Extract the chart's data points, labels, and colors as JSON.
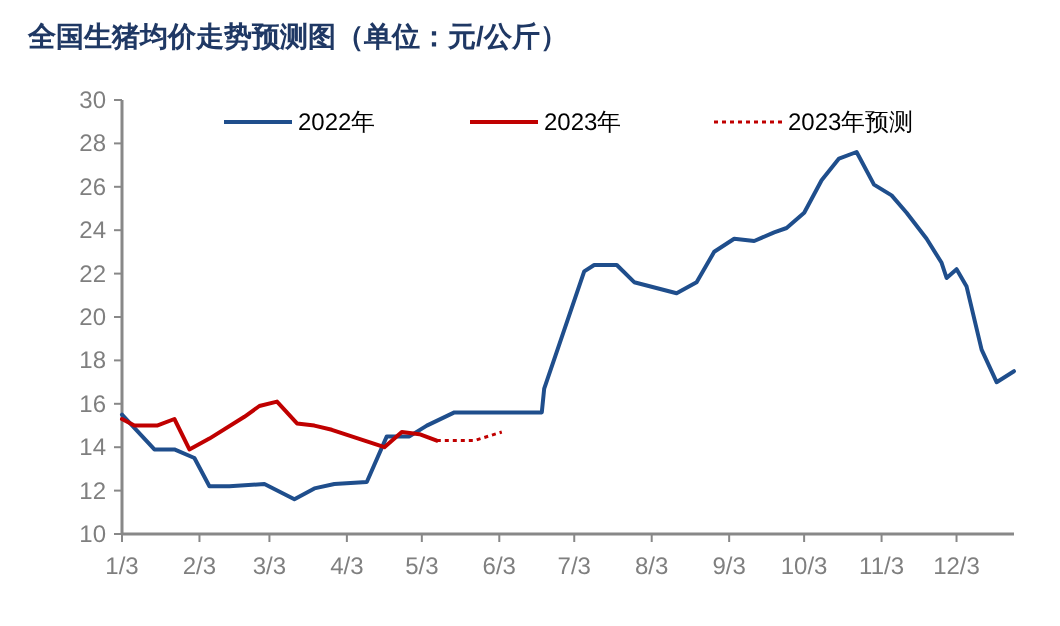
{
  "chart_data": {
    "type": "line",
    "title": "全国生猪均价走势预测图（单位：元/公斤）",
    "legend": "top",
    "marker": "none",
    "xlim": [
      "--01-03",
      "--12-26"
    ],
    "xticks": [
      {
        "value": "--01-03",
        "label": "1/3"
      },
      {
        "value": "--02-03",
        "label": "2/3"
      },
      {
        "value": "--03-03",
        "label": "3/3"
      },
      {
        "value": "--04-03",
        "label": "4/3"
      },
      {
        "value": "--05-03",
        "label": "5/3"
      },
      {
        "value": "--06-03",
        "label": "6/3"
      },
      {
        "value": "--07-03",
        "label": "7/3"
      },
      {
        "value": "--08-03",
        "label": "8/3"
      },
      {
        "value": "--09-03",
        "label": "9/3"
      },
      {
        "value": "--10-03",
        "label": "10/3"
      },
      {
        "value": "--11-03",
        "label": "11/3"
      },
      {
        "value": "--12-03",
        "label": "12/3"
      }
    ],
    "ylim": [
      10,
      30
    ],
    "yticks": [
      10,
      12,
      14,
      16,
      18,
      20,
      22,
      24,
      26,
      28,
      30
    ],
    "grid": false,
    "series": [
      {
        "name": "2022年",
        "color": "#1f4e8c",
        "line_style": "solid",
        "x": [
          "--01-03",
          "--01-16",
          "--01-24",
          "--02-01",
          "--02-07",
          "--02-15",
          "--03-01",
          "--03-13",
          "--03-21",
          "--03-29",
          "--04-11",
          "--04-19",
          "--04-28",
          "--05-05",
          "--05-16",
          "--06-20",
          "--06-21",
          "--07-07",
          "--07-11",
          "--07-20",
          "--07-27",
          "--08-13",
          "--08-21",
          "--08-28",
          "--09-05",
          "--09-13",
          "--09-21",
          "--09-26",
          "--10-03",
          "--10-10",
          "--10-17",
          "--10-24",
          "--10-31",
          "--11-07",
          "--11-13",
          "--11-21",
          "--11-27",
          "--11-29",
          "--12-03",
          "--12-07",
          "--12-13",
          "--12-19",
          "--12-26"
        ],
        "values": [
          15.5,
          13.9,
          13.9,
          13.5,
          12.2,
          12.2,
          12.3,
          11.6,
          12.1,
          12.3,
          12.4,
          14.5,
          14.5,
          15.0,
          15.6,
          15.6,
          16.7,
          22.1,
          22.4,
          22.4,
          21.6,
          21.1,
          21.6,
          23.0,
          23.6,
          23.5,
          23.9,
          24.1,
          24.8,
          26.3,
          27.3,
          27.6,
          26.1,
          25.6,
          24.8,
          23.6,
          22.5,
          21.8,
          22.2,
          21.4,
          18.5,
          17.0,
          17.5
        ]
      },
      {
        "name": "2023年",
        "color": "#c00000",
        "line_style": "solid",
        "x": [
          "--01-03",
          "--01-08",
          "--01-17",
          "--01-24",
          "--01-30",
          "--02-07",
          "--02-21",
          "--02-27",
          "--03-06",
          "--03-14",
          "--03-21",
          "--03-28",
          "--04-18",
          "--04-25",
          "--05-02",
          "--05-09"
        ],
        "values": [
          15.3,
          15.0,
          15.0,
          15.3,
          13.9,
          14.4,
          15.4,
          15.9,
          16.1,
          15.1,
          15.0,
          14.8,
          14.0,
          14.7,
          14.6,
          14.3
        ]
      },
      {
        "name": "2023年预测",
        "color": "#c00000",
        "line_style": "dotted",
        "x": [
          "--05-09",
          "--05-17",
          "--05-24",
          "--06-04"
        ],
        "values": [
          14.3,
          14.3,
          14.3,
          14.7
        ]
      }
    ]
  }
}
